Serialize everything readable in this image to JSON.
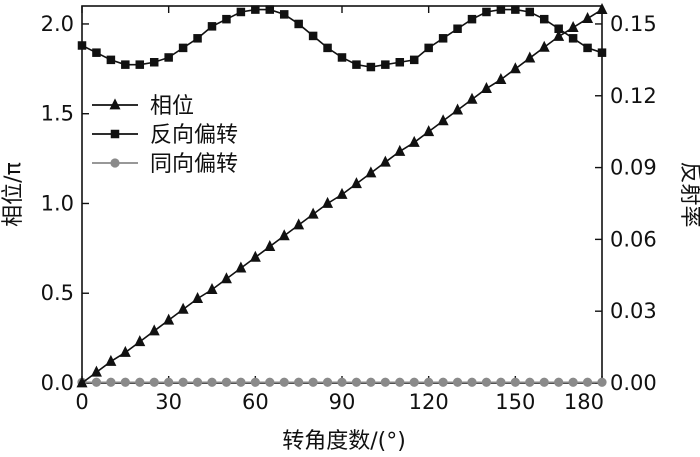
{
  "chart_data": {
    "type": "line",
    "xlabel": "转角度数/(°)",
    "ylabel_left": "相位/π",
    "ylabel_right": "反射率",
    "xlim": [
      0,
      180
    ],
    "ylim_left": [
      0,
      2.1
    ],
    "ylim_right": [
      0,
      0.1575
    ],
    "xticks": [
      0,
      30,
      60,
      90,
      120,
      150,
      180
    ],
    "yticks_left": [
      0.0,
      0.5,
      1.0,
      1.5,
      2.0
    ],
    "yticks_left_labels": [
      "0.0",
      "0.5",
      "1.0",
      "1.5",
      "2.0"
    ],
    "yticks_right": [
      0.0,
      0.03,
      0.06,
      0.09,
      0.12,
      0.15
    ],
    "yticks_right_labels": [
      "0.00",
      "0.03",
      "0.06",
      "0.09",
      "0.12",
      "0.15"
    ],
    "grid": false,
    "legend_position": "left-middle",
    "x": [
      0,
      5,
      10,
      15,
      20,
      25,
      30,
      35,
      40,
      45,
      50,
      55,
      60,
      65,
      70,
      75,
      80,
      85,
      90,
      95,
      100,
      105,
      110,
      115,
      120,
      125,
      130,
      135,
      140,
      145,
      150,
      155,
      160,
      165,
      170,
      175,
      180
    ],
    "series": [
      {
        "name": "相位",
        "axis": "left",
        "marker": "triangle",
        "color": "#111111",
        "values": [
          0.0,
          0.06,
          0.12,
          0.17,
          0.23,
          0.29,
          0.35,
          0.41,
          0.47,
          0.52,
          0.58,
          0.64,
          0.7,
          0.76,
          0.82,
          0.88,
          0.94,
          1.0,
          1.05,
          1.11,
          1.17,
          1.23,
          1.29,
          1.34,
          1.4,
          1.46,
          1.52,
          1.58,
          1.64,
          1.69,
          1.75,
          1.81,
          1.87,
          1.93,
          1.98,
          2.03,
          2.08
        ]
      },
      {
        "name": "反向偏转",
        "axis": "right",
        "marker": "square",
        "color": "#111111",
        "values": [
          0.141,
          0.138,
          0.135,
          0.133,
          0.133,
          0.134,
          0.136,
          0.14,
          0.144,
          0.149,
          0.152,
          0.155,
          0.156,
          0.156,
          0.154,
          0.15,
          0.145,
          0.14,
          0.136,
          0.133,
          0.132,
          0.133,
          0.134,
          0.135,
          0.14,
          0.144,
          0.148,
          0.152,
          0.155,
          0.156,
          0.156,
          0.155,
          0.152,
          0.148,
          0.144,
          0.14,
          0.138
        ]
      },
      {
        "name": "同向偏转",
        "axis": "right",
        "marker": "circle",
        "color": "#8a8a8a",
        "values": [
          0.0003,
          0.0003,
          0.0003,
          0.0003,
          0.0003,
          0.0003,
          0.0003,
          0.0003,
          0.0003,
          0.0003,
          0.0003,
          0.0003,
          0.0003,
          0.0003,
          0.0003,
          0.0003,
          0.0003,
          0.0003,
          0.0003,
          0.0003,
          0.0003,
          0.0003,
          0.0003,
          0.0003,
          0.0003,
          0.0003,
          0.0003,
          0.0003,
          0.0003,
          0.0003,
          0.0003,
          0.0003,
          0.0003,
          0.0003,
          0.0003,
          0.0003,
          0.0003
        ]
      }
    ]
  }
}
